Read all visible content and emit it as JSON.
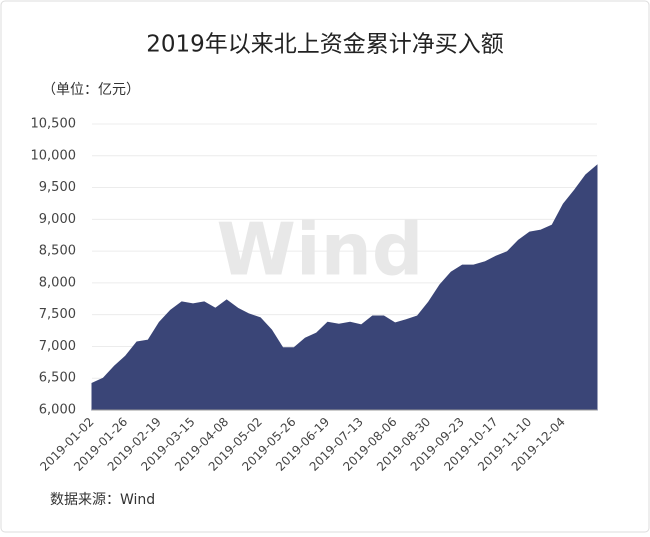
{
  "chart_data": {
    "type": "area",
    "title": "2019年以来北上资金累计净买入额",
    "unit_label": "（单位：亿元）",
    "source": "数据来源：Wind",
    "watermark": "Wind",
    "categories": [
      "2019-01-02",
      null,
      null,
      "2019-01-26",
      null,
      null,
      "2019-02-19",
      null,
      null,
      "2019-03-15",
      null,
      null,
      "2019-04-08",
      null,
      null,
      "2019-05-02",
      null,
      null,
      "2019-05-26",
      null,
      null,
      "2019-06-19",
      null,
      null,
      "2019-07-13",
      null,
      null,
      "2019-08-06",
      null,
      null,
      "2019-08-30",
      null,
      null,
      "2019-09-23",
      null,
      null,
      "2019-10-17",
      null,
      null,
      "2019-11-10",
      null,
      null,
      "2019-12-04",
      null,
      null,
      null
    ],
    "values": [
      6420,
      6500,
      6690,
      6850,
      7070,
      7100,
      7380,
      7570,
      7700,
      7670,
      7700,
      7600,
      7730,
      7600,
      7510,
      7450,
      7260,
      6980,
      6980,
      7130,
      7210,
      7380,
      7350,
      7380,
      7340,
      7480,
      7480,
      7370,
      7420,
      7480,
      7700,
      7970,
      8170,
      8280,
      8280,
      8330,
      8420,
      8490,
      8670,
      8800,
      8830,
      8910,
      9240,
      9460,
      9700,
      9850
    ],
    "color": "#3a4577",
    "ylim": [
      6000,
      10500
    ],
    "yticks": [
      {
        "value": 6000,
        "label": "6,000"
      },
      {
        "value": 6500,
        "label": "6,500"
      },
      {
        "value": 7000,
        "label": "7,000"
      },
      {
        "value": 7500,
        "label": "7,500"
      },
      {
        "value": 8000,
        "label": "8,000"
      },
      {
        "value": 8500,
        "label": "8,500"
      },
      {
        "value": 9000,
        "label": "9,000"
      },
      {
        "value": 9500,
        "label": "9,500"
      },
      {
        "value": 10000,
        "label": "10,000"
      },
      {
        "value": 10500,
        "label": "10,500"
      }
    ],
    "grid": true
  }
}
